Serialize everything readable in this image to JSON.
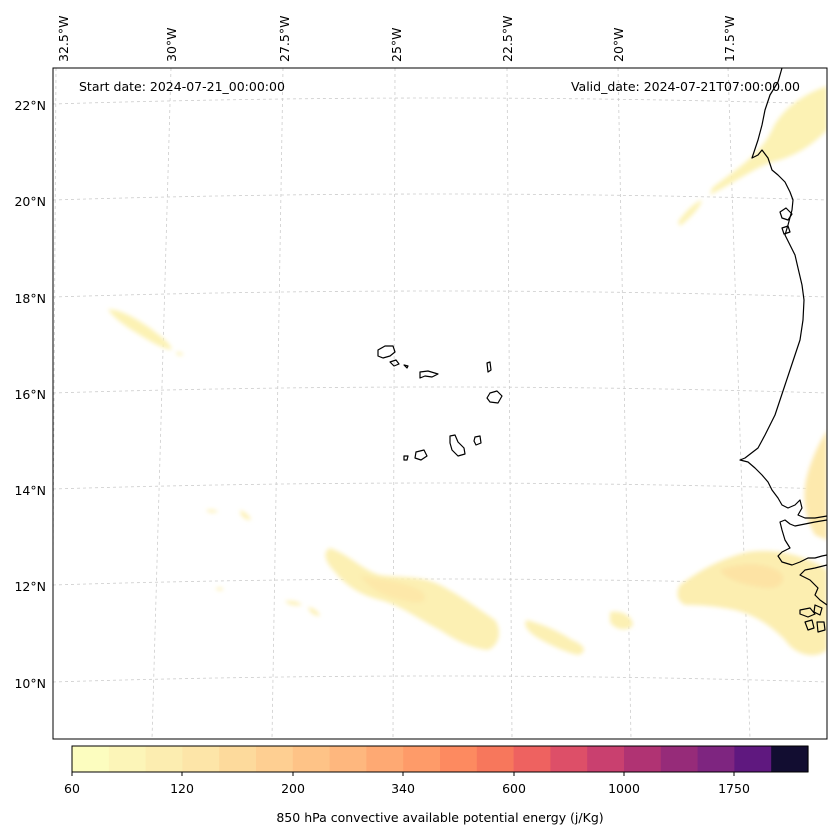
{
  "map": {
    "start_date": "Start date: 2024-07-21_00:00:00",
    "valid_date": "Valid_date: 2024-07-21T07:00:00.00",
    "longitude_labels": [
      "32.5°W",
      "30°W",
      "27.5°W",
      "25°W",
      "22.5°W",
      "20°W",
      "17.5°W"
    ],
    "latitude_labels": [
      "22°N",
      "20°N",
      "18°N",
      "16°N",
      "14°N",
      "12°N",
      "10°N"
    ],
    "coastline_color": "#000000",
    "gridline_color": "#cccccc"
  },
  "colorbar": {
    "label": "850 hPa convective available potential energy (j/Kg)",
    "tick_labels": [
      "60",
      "120",
      "200",
      "340",
      "600",
      "1000",
      "1750"
    ],
    "colors": [
      "#fcfdbf",
      "#fcf5b8",
      "#fcedb0",
      "#fde5a8",
      "#fdda9c",
      "#fecf92",
      "#fec387",
      "#feb77e",
      "#fea973",
      "#fe9b69",
      "#fd8a60",
      "#f7775c",
      "#ee6260",
      "#dd4f68",
      "#c9406f",
      "#b03373",
      "#962b79",
      "#7e2580",
      "#5f187f",
      "#120d31"
    ]
  }
}
